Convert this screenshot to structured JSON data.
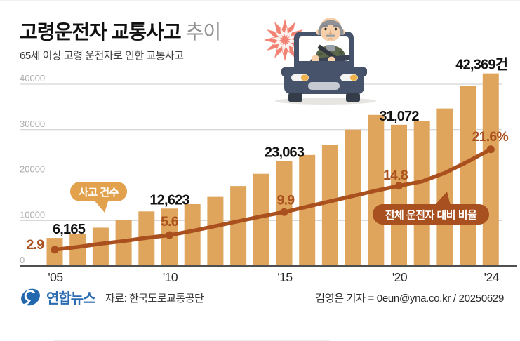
{
  "header": {
    "title_main": "고령운전자 교통사고",
    "title_suffix": "추이",
    "subtitle": "65세 이상 고령 운전자로 인한 교통사고"
  },
  "chart_data": {
    "type": "bar+line combo",
    "title": "고령운전자 교통사고 추이",
    "categories": [
      "2005",
      "2006",
      "2007",
      "2008",
      "2009",
      "2010",
      "2011",
      "2012",
      "2013",
      "2014",
      "2015",
      "2016",
      "2017",
      "2018",
      "2019",
      "2020",
      "2021",
      "2022",
      "2023",
      "2024"
    ],
    "series": [
      {
        "name": "사고 건수",
        "type": "bar",
        "values": [
          6165,
          7001,
          8426,
          10155,
          11998,
          12623,
          13596,
          15190,
          17590,
          20275,
          23063,
          24429,
          26713,
          30012,
          33239,
          31072,
          31841,
          34652,
          39614,
          42369
        ],
        "labeled_points": [
          {
            "i": 0,
            "text": "6,165"
          },
          {
            "i": 5,
            "text": "12,623"
          },
          {
            "i": 10,
            "text": "23,063"
          },
          {
            "i": 15,
            "text": "31,072"
          },
          {
            "i": 19,
            "text": "42,369건"
          }
        ]
      },
      {
        "name": "전체 운전자 대비 비율",
        "type": "line",
        "values": [
          2.9,
          3.4,
          4.0,
          4.5,
          5.1,
          5.6,
          6.4,
          7.3,
          8.2,
          9.1,
          9.9,
          10.9,
          11.9,
          12.9,
          13.9,
          14.8,
          15.6,
          17.2,
          19.3,
          21.6
        ],
        "labeled_points": [
          {
            "i": 0,
            "text": "2.9"
          },
          {
            "i": 5,
            "text": "5.6"
          },
          {
            "i": 10,
            "text": "9.9"
          },
          {
            "i": 15,
            "text": "14.8"
          },
          {
            "i": 19,
            "text": "21.6%"
          }
        ]
      }
    ],
    "y_axis": {
      "ticks": [
        0,
        10000,
        20000,
        30000,
        40000
      ],
      "tick_labels": [
        "0",
        "10000",
        "20000",
        "30000",
        "40000"
      ],
      "ylim": [
        0,
        44000
      ]
    },
    "x_ticks": [
      {
        "i": 0,
        "label": "'05"
      },
      {
        "i": 5,
        "label": "'10"
      },
      {
        "i": 10,
        "label": "'15"
      },
      {
        "i": 15,
        "label": "'20"
      },
      {
        "i": 19,
        "label": "'24"
      }
    ],
    "badges": [
      {
        "id": "accidents",
        "label": "사고 건수"
      },
      {
        "id": "ratio",
        "label": "전체 운전자 대비 비율"
      }
    ],
    "legend_position": "inside-plot",
    "grid": true,
    "colors": {
      "bar": "#DFA55C",
      "line": "#A9501E",
      "badge_accidents": "#E2A14C",
      "badge_ratio": "#A8501F",
      "grid_line": "#CBCBCB",
      "axis_line": "#4F4F4F",
      "y_tick_text": "#ACACAC",
      "x_tick_text": "#2B2B2B",
      "bar_value_text": "#121212"
    }
  },
  "footer": {
    "logo_text": "연합뉴스",
    "source": "자료: 한국도로교통공단",
    "credit": "김영은 기자 = 0eun@yna.co.kr / 20250629"
  }
}
